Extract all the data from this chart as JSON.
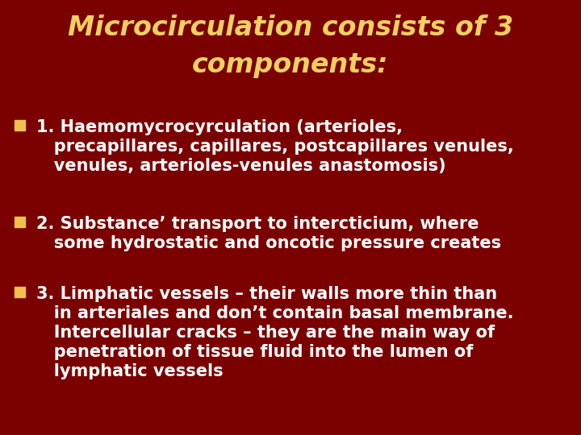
{
  "title_line1": "Microcirculation consists of 3",
  "title_line2": "components:",
  "title_color": "#F0D060",
  "background_color": "#7B0000",
  "text_color": "#FFFFFF",
  "bullet_square_color": "#F0C050",
  "item1": "1. Haemomycrocyrculation (arterioles,\n   precapillares, capillares, postcapillares venules,\n   venules, arterioles-venules anastomosis)",
  "item2": "2. Substance’ transport to intercticium, where\n   some hydrostatic and oncotic pressure creates",
  "item3": "3. Limphatic vessels – their walls more thin than\n   in arteriales and don’t contain basal membrane.\n   Intercellular cracks – they are the main way of\n   penetration of tissue fluid into the lumen of\n   lymphatic vessels",
  "title_fontsize": 24,
  "body_fontsize": 15,
  "figsize": [
    7.2,
    5.4
  ],
  "dpi": 100
}
